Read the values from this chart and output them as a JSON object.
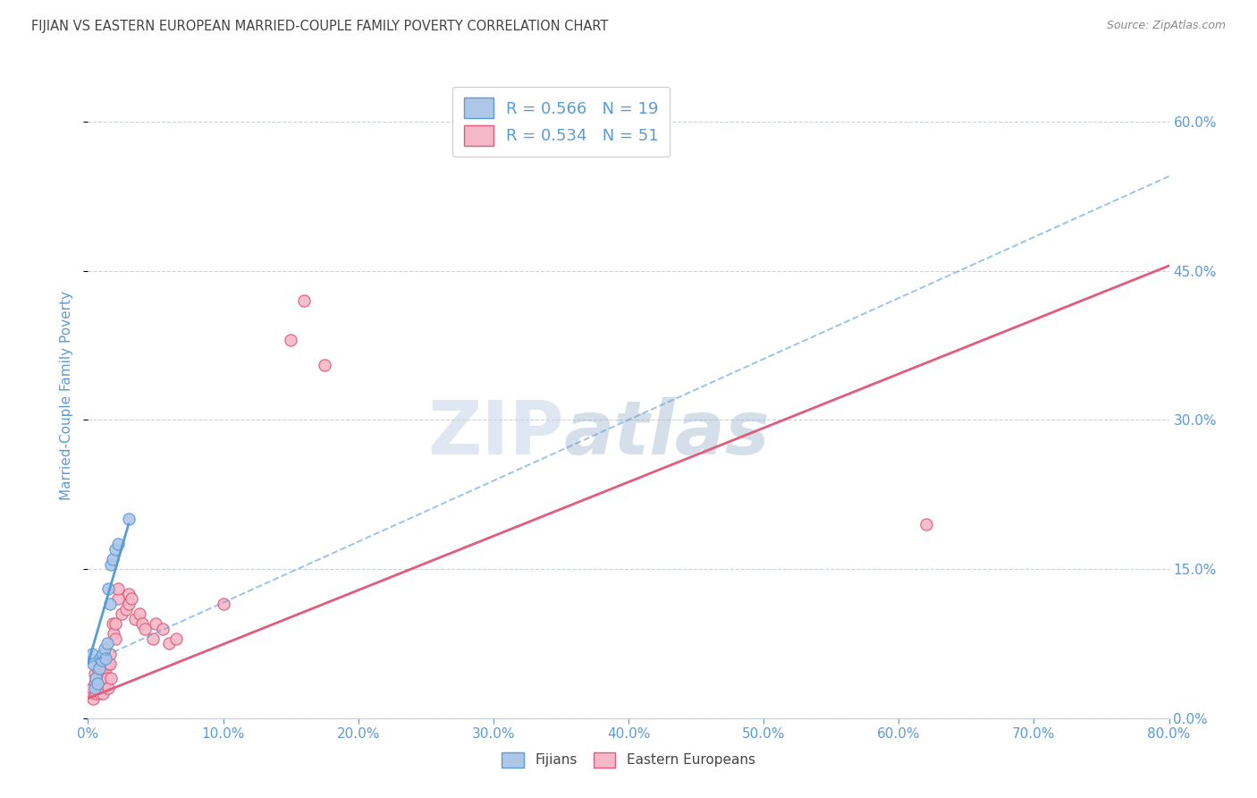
{
  "title": "FIJIAN VS EASTERN EUROPEAN MARRIED-COUPLE FAMILY POVERTY CORRELATION CHART",
  "source": "Source: ZipAtlas.com",
  "ylabel": "Married-Couple Family Poverty",
  "watermark_zip": "ZIP",
  "watermark_atlas": "atlas",
  "xlim": [
    0.0,
    0.8
  ],
  "ylim": [
    0.0,
    0.65
  ],
  "yticks": [
    0.0,
    0.15,
    0.3,
    0.45,
    0.6
  ],
  "xticks": [
    0.0,
    0.1,
    0.2,
    0.3,
    0.4,
    0.5,
    0.6,
    0.7,
    0.8
  ],
  "fijians_R": 0.566,
  "fijians_N": 19,
  "eastern_R": 0.534,
  "eastern_N": 51,
  "fijians_color": "#aec6e8",
  "eastern_color": "#f5b8c8",
  "fijians_edge_color": "#5b9bd5",
  "eastern_edge_color": "#e05c7a",
  "fijians_line_color": "#5b9bd5",
  "eastern_line_color": "#e05c7a",
  "fijians_scatter": [
    [
      0.003,
      0.065
    ],
    [
      0.004,
      0.055
    ],
    [
      0.005,
      0.03
    ],
    [
      0.006,
      0.04
    ],
    [
      0.007,
      0.035
    ],
    [
      0.008,
      0.05
    ],
    [
      0.009,
      0.06
    ],
    [
      0.01,
      0.058
    ],
    [
      0.011,
      0.065
    ],
    [
      0.012,
      0.07
    ],
    [
      0.013,
      0.06
    ],
    [
      0.014,
      0.075
    ],
    [
      0.015,
      0.13
    ],
    [
      0.016,
      0.115
    ],
    [
      0.017,
      0.155
    ],
    [
      0.018,
      0.16
    ],
    [
      0.02,
      0.17
    ],
    [
      0.022,
      0.175
    ],
    [
      0.03,
      0.2
    ]
  ],
  "eastern_scatter": [
    [
      0.002,
      0.025
    ],
    [
      0.003,
      0.03
    ],
    [
      0.004,
      0.02
    ],
    [
      0.005,
      0.035
    ],
    [
      0.005,
      0.045
    ],
    [
      0.006,
      0.025
    ],
    [
      0.006,
      0.04
    ],
    [
      0.007,
      0.03
    ],
    [
      0.007,
      0.05
    ],
    [
      0.008,
      0.035
    ],
    [
      0.008,
      0.06
    ],
    [
      0.009,
      0.025
    ],
    [
      0.009,
      0.04
    ],
    [
      0.01,
      0.055
    ],
    [
      0.01,
      0.03
    ],
    [
      0.011,
      0.045
    ],
    [
      0.011,
      0.025
    ],
    [
      0.012,
      0.06
    ],
    [
      0.012,
      0.035
    ],
    [
      0.013,
      0.05
    ],
    [
      0.014,
      0.04
    ],
    [
      0.015,
      0.055
    ],
    [
      0.015,
      0.03
    ],
    [
      0.016,
      0.065
    ],
    [
      0.016,
      0.055
    ],
    [
      0.017,
      0.04
    ],
    [
      0.018,
      0.095
    ],
    [
      0.019,
      0.085
    ],
    [
      0.02,
      0.08
    ],
    [
      0.02,
      0.095
    ],
    [
      0.022,
      0.12
    ],
    [
      0.022,
      0.13
    ],
    [
      0.025,
      0.105
    ],
    [
      0.028,
      0.11
    ],
    [
      0.03,
      0.125
    ],
    [
      0.03,
      0.115
    ],
    [
      0.032,
      0.12
    ],
    [
      0.035,
      0.1
    ],
    [
      0.038,
      0.105
    ],
    [
      0.04,
      0.095
    ],
    [
      0.042,
      0.09
    ],
    [
      0.048,
      0.08
    ],
    [
      0.05,
      0.095
    ],
    [
      0.055,
      0.09
    ],
    [
      0.06,
      0.075
    ],
    [
      0.065,
      0.08
    ],
    [
      0.1,
      0.115
    ],
    [
      0.15,
      0.38
    ],
    [
      0.16,
      0.42
    ],
    [
      0.175,
      0.355
    ],
    [
      0.62,
      0.195
    ]
  ],
  "fijians_solid_line": [
    [
      0.0,
      0.055
    ],
    [
      0.03,
      0.195
    ]
  ],
  "fijians_dashed_line": [
    [
      0.0,
      0.055
    ],
    [
      0.8,
      0.545
    ]
  ],
  "eastern_line": [
    [
      0.0,
      0.02
    ],
    [
      0.8,
      0.455
    ]
  ],
  "background_color": "#ffffff",
  "grid_color": "#c5cdd8",
  "title_color": "#444444",
  "label_color": "#5b9bd5",
  "source_color": "#888888"
}
